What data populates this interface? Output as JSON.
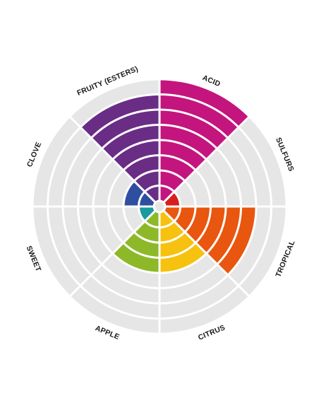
{
  "chart_data": {
    "type": "radar-wedge",
    "max_value": 8,
    "grid": true,
    "background_color": "#e6e6e6",
    "ring_separator_color": "#ffffff",
    "categories": [
      {
        "label": "ACID",
        "value": 8,
        "color": "#c4147e"
      },
      {
        "label": "SULFURS",
        "value": 1,
        "color": "#d81e1e"
      },
      {
        "label": "TROPICAL",
        "value": 6,
        "color": "#e8560f"
      },
      {
        "label": "CITRUS",
        "value": 4,
        "color": "#f6c20f"
      },
      {
        "label": "APPLE",
        "value": 4,
        "color": "#8db929"
      },
      {
        "label": "SWEET",
        "value": 1,
        "color": "#1b9aa0"
      },
      {
        "label": "CLOVE",
        "value": 2,
        "color": "#2e4ea0"
      },
      {
        "label": "FRUITY (ESTERS)",
        "value": 7,
        "color": "#6a2d86"
      }
    ]
  }
}
